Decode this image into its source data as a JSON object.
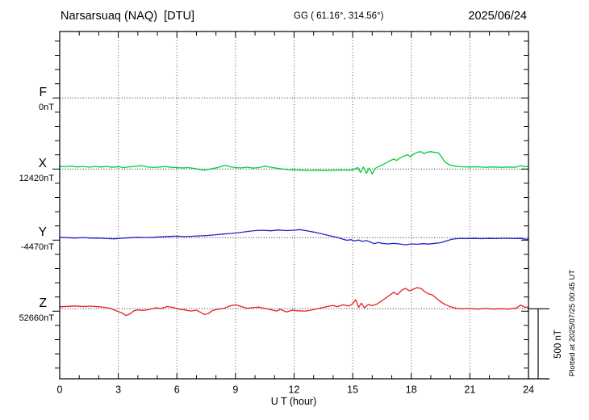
{
  "header": {
    "station": "Narsarsuaq (NAQ)  [DTU]",
    "coords": "GG ( 61.16°, 314.56°)",
    "date": "2025/06/24"
  },
  "axes": {
    "x_label": "U T (hour)",
    "x_ticks": [
      0,
      3,
      6,
      9,
      12,
      15,
      18,
      21,
      24
    ]
  },
  "scale_bar": {
    "label": "500 nT",
    "span_nT": 500
  },
  "footer": {
    "plotted_at": "Plotted at 2025/07/25 00:45 UT"
  },
  "chart_data": {
    "type": "line",
    "title": "Narsarsuaq (NAQ) [DTU] magnetogram",
    "xlabel": "U T (hour)",
    "x_range": [
      0,
      24
    ],
    "grid": "dotted vertical every 3 h, dotted horizontal at each component baseline",
    "units": "nT",
    "scale_nT_per_division": 500,
    "note": "points are [hour UT, offset in nT from component baseline]",
    "series": [
      {
        "id": "F",
        "label": "F",
        "baseline_label": "0nT",
        "baseline_nT": 0,
        "color": "#FFA500",
        "points": []
      },
      {
        "id": "X",
        "label": "X",
        "baseline_label": "12420nT",
        "baseline_nT": 12420,
        "color": "#00CE33",
        "points": [
          [
            0,
            20
          ],
          [
            0.3,
            16
          ],
          [
            0.6,
            21
          ],
          [
            0.9,
            15
          ],
          [
            1.2,
            19
          ],
          [
            1.5,
            13
          ],
          [
            1.8,
            18
          ],
          [
            2.1,
            14
          ],
          [
            2.4,
            19
          ],
          [
            2.7,
            12
          ],
          [
            3,
            17
          ],
          [
            3.3,
            10
          ],
          [
            3.6,
            16
          ],
          [
            3.9,
            20
          ],
          [
            4.2,
            24
          ],
          [
            4.5,
            15
          ],
          [
            4.8,
            11
          ],
          [
            5.1,
            14
          ],
          [
            5.4,
            18
          ],
          [
            5.7,
            12
          ],
          [
            6,
            10
          ],
          [
            6.3,
            8
          ],
          [
            6.6,
            10
          ],
          [
            6.9,
            4
          ],
          [
            7.2,
            -3
          ],
          [
            7.4,
            -8
          ],
          [
            7.6,
            -2
          ],
          [
            7.8,
            3
          ],
          [
            8.1,
            10
          ],
          [
            8.3,
            20
          ],
          [
            8.5,
            26
          ],
          [
            8.7,
            17
          ],
          [
            9,
            10
          ],
          [
            9.3,
            8
          ],
          [
            9.6,
            13
          ],
          [
            9.9,
            7
          ],
          [
            10.2,
            10
          ],
          [
            10.5,
            20
          ],
          [
            10.8,
            13
          ],
          [
            11.1,
            6
          ],
          [
            11.4,
            0
          ],
          [
            11.7,
            -4
          ],
          [
            12,
            -6
          ],
          [
            12.4,
            -8
          ],
          [
            12.8,
            -10
          ],
          [
            13.2,
            -8
          ],
          [
            13.6,
            -11
          ],
          [
            14,
            -9
          ],
          [
            14.4,
            -7
          ],
          [
            14.8,
            -9
          ],
          [
            15.1,
            -2
          ],
          [
            15.25,
            12
          ],
          [
            15.4,
            -24
          ],
          [
            15.55,
            14
          ],
          [
            15.7,
            -30
          ],
          [
            15.85,
            8
          ],
          [
            16,
            -34
          ],
          [
            16.15,
            4
          ],
          [
            16.3,
            16
          ],
          [
            16.5,
            28
          ],
          [
            16.7,
            42
          ],
          [
            16.9,
            58
          ],
          [
            17.1,
            70
          ],
          [
            17.25,
            60
          ],
          [
            17.4,
            76
          ],
          [
            17.6,
            90
          ],
          [
            17.8,
            100
          ],
          [
            17.95,
            88
          ],
          [
            18.1,
            102
          ],
          [
            18.3,
            118
          ],
          [
            18.5,
            122
          ],
          [
            18.65,
            108
          ],
          [
            18.8,
            118
          ],
          [
            19,
            122
          ],
          [
            19.2,
            117
          ],
          [
            19.4,
            113
          ],
          [
            19.55,
            85
          ],
          [
            19.7,
            55
          ],
          [
            19.85,
            38
          ],
          [
            20,
            27
          ],
          [
            20.3,
            20
          ],
          [
            20.6,
            16
          ],
          [
            21,
            14
          ],
          [
            21.4,
            16
          ],
          [
            21.8,
            12
          ],
          [
            22.2,
            15
          ],
          [
            22.6,
            12
          ],
          [
            23,
            14
          ],
          [
            23.3,
            12
          ],
          [
            23.6,
            24
          ],
          [
            23.8,
            16
          ],
          [
            24,
            20
          ]
        ]
      },
      {
        "id": "Y",
        "label": "Y",
        "baseline_label": "-4470nT",
        "baseline_nT": -4470,
        "color": "#2222CC",
        "points": [
          [
            0,
            2
          ],
          [
            0.4,
            0
          ],
          [
            0.8,
            -2
          ],
          [
            1.2,
            1
          ],
          [
            1.6,
            -3
          ],
          [
            2,
            -2
          ],
          [
            2.4,
            -6
          ],
          [
            2.8,
            -8
          ],
          [
            3.2,
            -4
          ],
          [
            3.6,
            0
          ],
          [
            4,
            3
          ],
          [
            4.4,
            1
          ],
          [
            4.8,
            3
          ],
          [
            5.2,
            6
          ],
          [
            5.6,
            9
          ],
          [
            6,
            11
          ],
          [
            6.4,
            8
          ],
          [
            6.8,
            10
          ],
          [
            7.2,
            13
          ],
          [
            7.6,
            16
          ],
          [
            8,
            21
          ],
          [
            8.4,
            26
          ],
          [
            8.8,
            30
          ],
          [
            9.2,
            36
          ],
          [
            9.6,
            44
          ],
          [
            10,
            50
          ],
          [
            10.4,
            52
          ],
          [
            10.8,
            49
          ],
          [
            11.2,
            54
          ],
          [
            11.6,
            50
          ],
          [
            12,
            53
          ],
          [
            12.3,
            57
          ],
          [
            12.6,
            50
          ],
          [
            13,
            40
          ],
          [
            13.4,
            28
          ],
          [
            13.8,
            14
          ],
          [
            14.2,
            2
          ],
          [
            14.5,
            -10
          ],
          [
            14.7,
            -18
          ],
          [
            14.9,
            -14
          ],
          [
            15.1,
            -22
          ],
          [
            15.3,
            -16
          ],
          [
            15.5,
            -26
          ],
          [
            15.7,
            -20
          ],
          [
            15.9,
            -30
          ],
          [
            16.1,
            -42
          ],
          [
            16.3,
            -34
          ],
          [
            16.5,
            -40
          ],
          [
            16.8,
            -44
          ],
          [
            17.1,
            -40
          ],
          [
            17.4,
            -44
          ],
          [
            17.7,
            -50
          ],
          [
            18,
            -44
          ],
          [
            18.3,
            -46
          ],
          [
            18.6,
            -42
          ],
          [
            18.9,
            -45
          ],
          [
            19.2,
            -40
          ],
          [
            19.5,
            -35
          ],
          [
            19.8,
            -22
          ],
          [
            20.1,
            -10
          ],
          [
            20.4,
            -6
          ],
          [
            20.8,
            -6
          ],
          [
            21.2,
            -5
          ],
          [
            21.6,
            -7
          ],
          [
            22,
            -5
          ],
          [
            22.4,
            -6
          ],
          [
            22.8,
            -4
          ],
          [
            23.2,
            -6
          ],
          [
            23.6,
            -5
          ],
          [
            23.9,
            -12
          ],
          [
            24,
            -8
          ]
        ]
      },
      {
        "id": "Z",
        "label": "Z",
        "baseline_label": "52660nT",
        "baseline_nT": 52660,
        "color": "#E42222",
        "points": [
          [
            0,
            14
          ],
          [
            0.4,
            17
          ],
          [
            0.8,
            20
          ],
          [
            1.2,
            16
          ],
          [
            1.6,
            19
          ],
          [
            2,
            14
          ],
          [
            2.3,
            10
          ],
          [
            2.6,
            2
          ],
          [
            2.9,
            -14
          ],
          [
            3.2,
            -30
          ],
          [
            3.4,
            -48
          ],
          [
            3.6,
            -36
          ],
          [
            3.8,
            -14
          ],
          [
            4,
            -8
          ],
          [
            4.3,
            -12
          ],
          [
            4.6,
            -4
          ],
          [
            4.9,
            6
          ],
          [
            5.2,
            2
          ],
          [
            5.5,
            16
          ],
          [
            5.8,
            10
          ],
          [
            6.1,
            -2
          ],
          [
            6.4,
            -8
          ],
          [
            6.7,
            -16
          ],
          [
            7,
            -10
          ],
          [
            7.2,
            -24
          ],
          [
            7.4,
            -40
          ],
          [
            7.6,
            -34
          ],
          [
            7.8,
            -14
          ],
          [
            8.1,
            -2
          ],
          [
            8.4,
            2
          ],
          [
            8.7,
            20
          ],
          [
            9,
            28
          ],
          [
            9.3,
            16
          ],
          [
            9.6,
            4
          ],
          [
            9.9,
            8
          ],
          [
            10.2,
            12
          ],
          [
            10.5,
            2
          ],
          [
            10.8,
            -6
          ],
          [
            11.1,
            -16
          ],
          [
            11.3,
            -4
          ],
          [
            11.6,
            -22
          ],
          [
            11.9,
            -10
          ],
          [
            12.2,
            -14
          ],
          [
            12.6,
            -16
          ],
          [
            13,
            -6
          ],
          [
            13.3,
            4
          ],
          [
            13.7,
            16
          ],
          [
            14,
            24
          ],
          [
            14.2,
            14
          ],
          [
            14.5,
            28
          ],
          [
            14.8,
            20
          ],
          [
            15,
            36
          ],
          [
            15.15,
            64
          ],
          [
            15.3,
            10
          ],
          [
            15.45,
            40
          ],
          [
            15.6,
            6
          ],
          [
            15.8,
            30
          ],
          [
            16,
            22
          ],
          [
            16.2,
            30
          ],
          [
            16.45,
            52
          ],
          [
            16.7,
            76
          ],
          [
            16.9,
            96
          ],
          [
            17.1,
            116
          ],
          [
            17.3,
            100
          ],
          [
            17.5,
            130
          ],
          [
            17.7,
            144
          ],
          [
            17.9,
            126
          ],
          [
            18.1,
            138
          ],
          [
            18.3,
            148
          ],
          [
            18.5,
            142
          ],
          [
            18.7,
            120
          ],
          [
            18.9,
            104
          ],
          [
            19.1,
            96
          ],
          [
            19.4,
            60
          ],
          [
            19.7,
            32
          ],
          [
            20,
            14
          ],
          [
            20.3,
            4
          ],
          [
            20.6,
            0
          ],
          [
            21,
            2
          ],
          [
            21.4,
            -2
          ],
          [
            21.8,
            2
          ],
          [
            22.2,
            -2
          ],
          [
            22.6,
            0
          ],
          [
            23,
            -2
          ],
          [
            23.4,
            6
          ],
          [
            23.6,
            26
          ],
          [
            23.8,
            10
          ],
          [
            24,
            12
          ]
        ]
      }
    ]
  }
}
